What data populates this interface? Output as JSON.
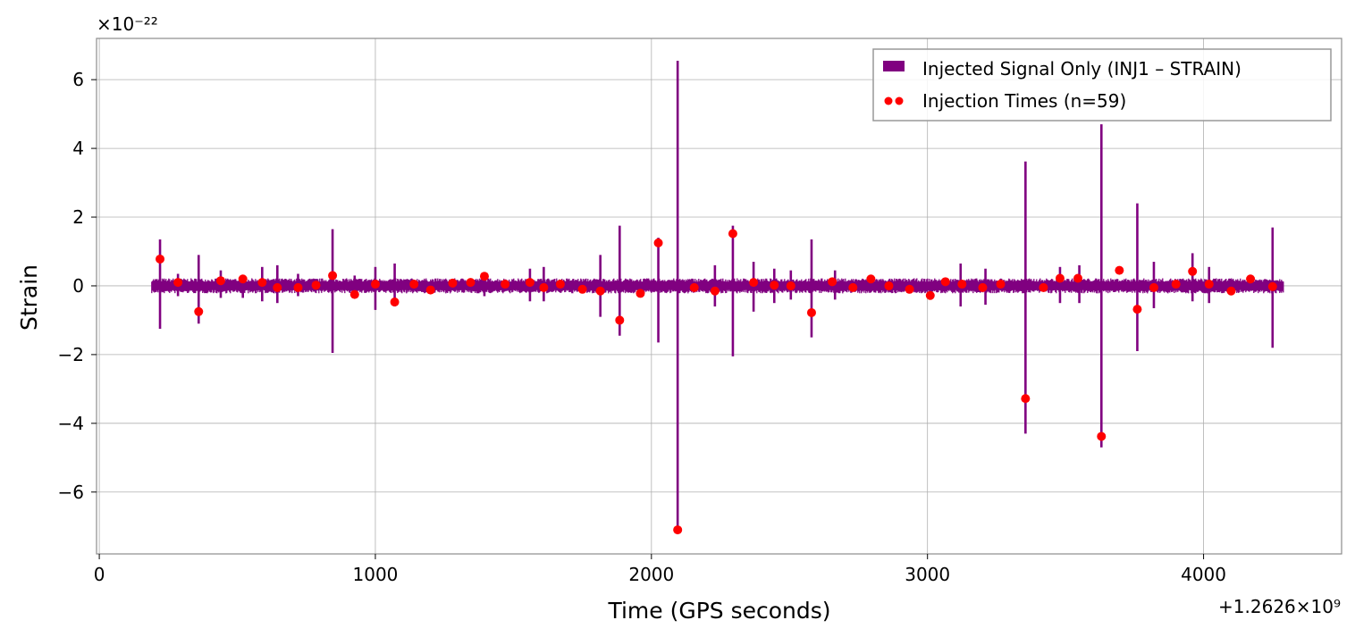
{
  "chart_data": {
    "type": "line",
    "xlabel": "Time (GPS seconds)",
    "ylabel": "Strain",
    "x_offset_text": "+1.2626×10⁹",
    "y_scale_text": "×10⁻²²",
    "xlim": [
      -10,
      4500
    ],
    "ylim": [
      -7.8,
      7.2
    ],
    "x_ticks": [
      0,
      1000,
      2000,
      3000,
      4000
    ],
    "x_tick_labels": [
      "0",
      "1000",
      "2000",
      "3000",
      "4000"
    ],
    "y_ticks": [
      -6,
      -4,
      -2,
      0,
      2,
      4,
      6
    ],
    "y_tick_labels": [
      "−6",
      "−4",
      "−2",
      "0",
      "2",
      "4",
      "6"
    ],
    "grid": true,
    "legend_position": "top-right",
    "series": [
      {
        "name": "Injected Signal Only (INJ1 – STRAIN)",
        "color": "#800080",
        "kind": "line",
        "time_range": [
          190,
          4290
        ],
        "noise_band": 0.22,
        "spikes": [
          {
            "t": 220,
            "hi": 1.35,
            "lo": -1.25
          },
          {
            "t": 285,
            "hi": 0.35,
            "lo": -0.3
          },
          {
            "t": 360,
            "hi": 0.9,
            "lo": -1.1
          },
          {
            "t": 440,
            "hi": 0.45,
            "lo": -0.35
          },
          {
            "t": 520,
            "hi": 0.3,
            "lo": -0.35
          },
          {
            "t": 590,
            "hi": 0.55,
            "lo": -0.45
          },
          {
            "t": 645,
            "hi": 0.6,
            "lo": -0.5
          },
          {
            "t": 720,
            "hi": 0.35,
            "lo": -0.3
          },
          {
            "t": 845,
            "hi": 1.65,
            "lo": -1.95
          },
          {
            "t": 925,
            "hi": 0.3,
            "lo": -0.35
          },
          {
            "t": 1000,
            "hi": 0.55,
            "lo": -0.7
          },
          {
            "t": 1070,
            "hi": 0.65,
            "lo": -0.6
          },
          {
            "t": 1395,
            "hi": 0.35,
            "lo": -0.3
          },
          {
            "t": 1560,
            "hi": 0.5,
            "lo": -0.45
          },
          {
            "t": 1610,
            "hi": 0.55,
            "lo": -0.45
          },
          {
            "t": 1815,
            "hi": 0.9,
            "lo": -0.9
          },
          {
            "t": 1885,
            "hi": 1.75,
            "lo": -1.45
          },
          {
            "t": 2025,
            "hi": 1.4,
            "lo": -1.65
          },
          {
            "t": 2095,
            "hi": 6.55,
            "lo": -7.1
          },
          {
            "t": 2230,
            "hi": 0.6,
            "lo": -0.6
          },
          {
            "t": 2295,
            "hi": 1.75,
            "lo": -2.05
          },
          {
            "t": 2370,
            "hi": 0.7,
            "lo": -0.75
          },
          {
            "t": 2445,
            "hi": 0.5,
            "lo": -0.5
          },
          {
            "t": 2505,
            "hi": 0.45,
            "lo": -0.4
          },
          {
            "t": 2580,
            "hi": 1.35,
            "lo": -1.5
          },
          {
            "t": 2665,
            "hi": 0.45,
            "lo": -0.4
          },
          {
            "t": 3120,
            "hi": 0.65,
            "lo": -0.6
          },
          {
            "t": 3210,
            "hi": 0.5,
            "lo": -0.55
          },
          {
            "t": 3355,
            "hi": 3.62,
            "lo": -4.3
          },
          {
            "t": 3480,
            "hi": 0.55,
            "lo": -0.5
          },
          {
            "t": 3550,
            "hi": 0.6,
            "lo": -0.5
          },
          {
            "t": 3630,
            "hi": 4.7,
            "lo": -4.7
          },
          {
            "t": 3760,
            "hi": 2.4,
            "lo": -1.9
          },
          {
            "t": 3820,
            "hi": 0.7,
            "lo": -0.65
          },
          {
            "t": 3960,
            "hi": 0.95,
            "lo": -0.45
          },
          {
            "t": 4020,
            "hi": 0.55,
            "lo": -0.5
          },
          {
            "t": 4250,
            "hi": 1.7,
            "lo": -1.8
          }
        ]
      },
      {
        "name": "Injection Times (n=59)",
        "color": "#ff0000",
        "kind": "scatter",
        "x": [
          220,
          285,
          360,
          440,
          520,
          590,
          645,
          720,
          785,
          845,
          925,
          1000,
          1070,
          1140,
          1200,
          1280,
          1345,
          1395,
          1470,
          1560,
          1610,
          1670,
          1750,
          1815,
          1885,
          1960,
          2025,
          2095,
          2155,
          2230,
          2295,
          2370,
          2445,
          2505,
          2580,
          2655,
          2730,
          2795,
          2860,
          2935,
          3010,
          3065,
          3125,
          3200,
          3265,
          3355,
          3420,
          3480,
          3545,
          3630,
          3695,
          3760,
          3820,
          3900,
          3960,
          4020,
          4100,
          4170,
          4250
        ],
        "y": [
          0.78,
          0.1,
          -0.75,
          0.15,
          0.2,
          0.1,
          -0.05,
          -0.05,
          0.02,
          0.3,
          -0.25,
          0.05,
          -0.47,
          0.05,
          -0.12,
          0.08,
          0.1,
          0.28,
          0.05,
          0.1,
          -0.05,
          0.05,
          -0.1,
          -0.15,
          -1.0,
          -0.22,
          1.25,
          -7.1,
          -0.05,
          -0.15,
          1.52,
          0.1,
          0.02,
          0.0,
          -0.78,
          0.12,
          -0.05,
          0.2,
          0.0,
          -0.1,
          -0.28,
          0.12,
          0.05,
          -0.05,
          0.05,
          -3.28,
          -0.05,
          0.22,
          0.22,
          -4.38,
          0.45,
          -0.68,
          -0.05,
          0.05,
          0.42,
          0.05,
          -0.15,
          0.2,
          -0.02
        ]
      }
    ]
  }
}
